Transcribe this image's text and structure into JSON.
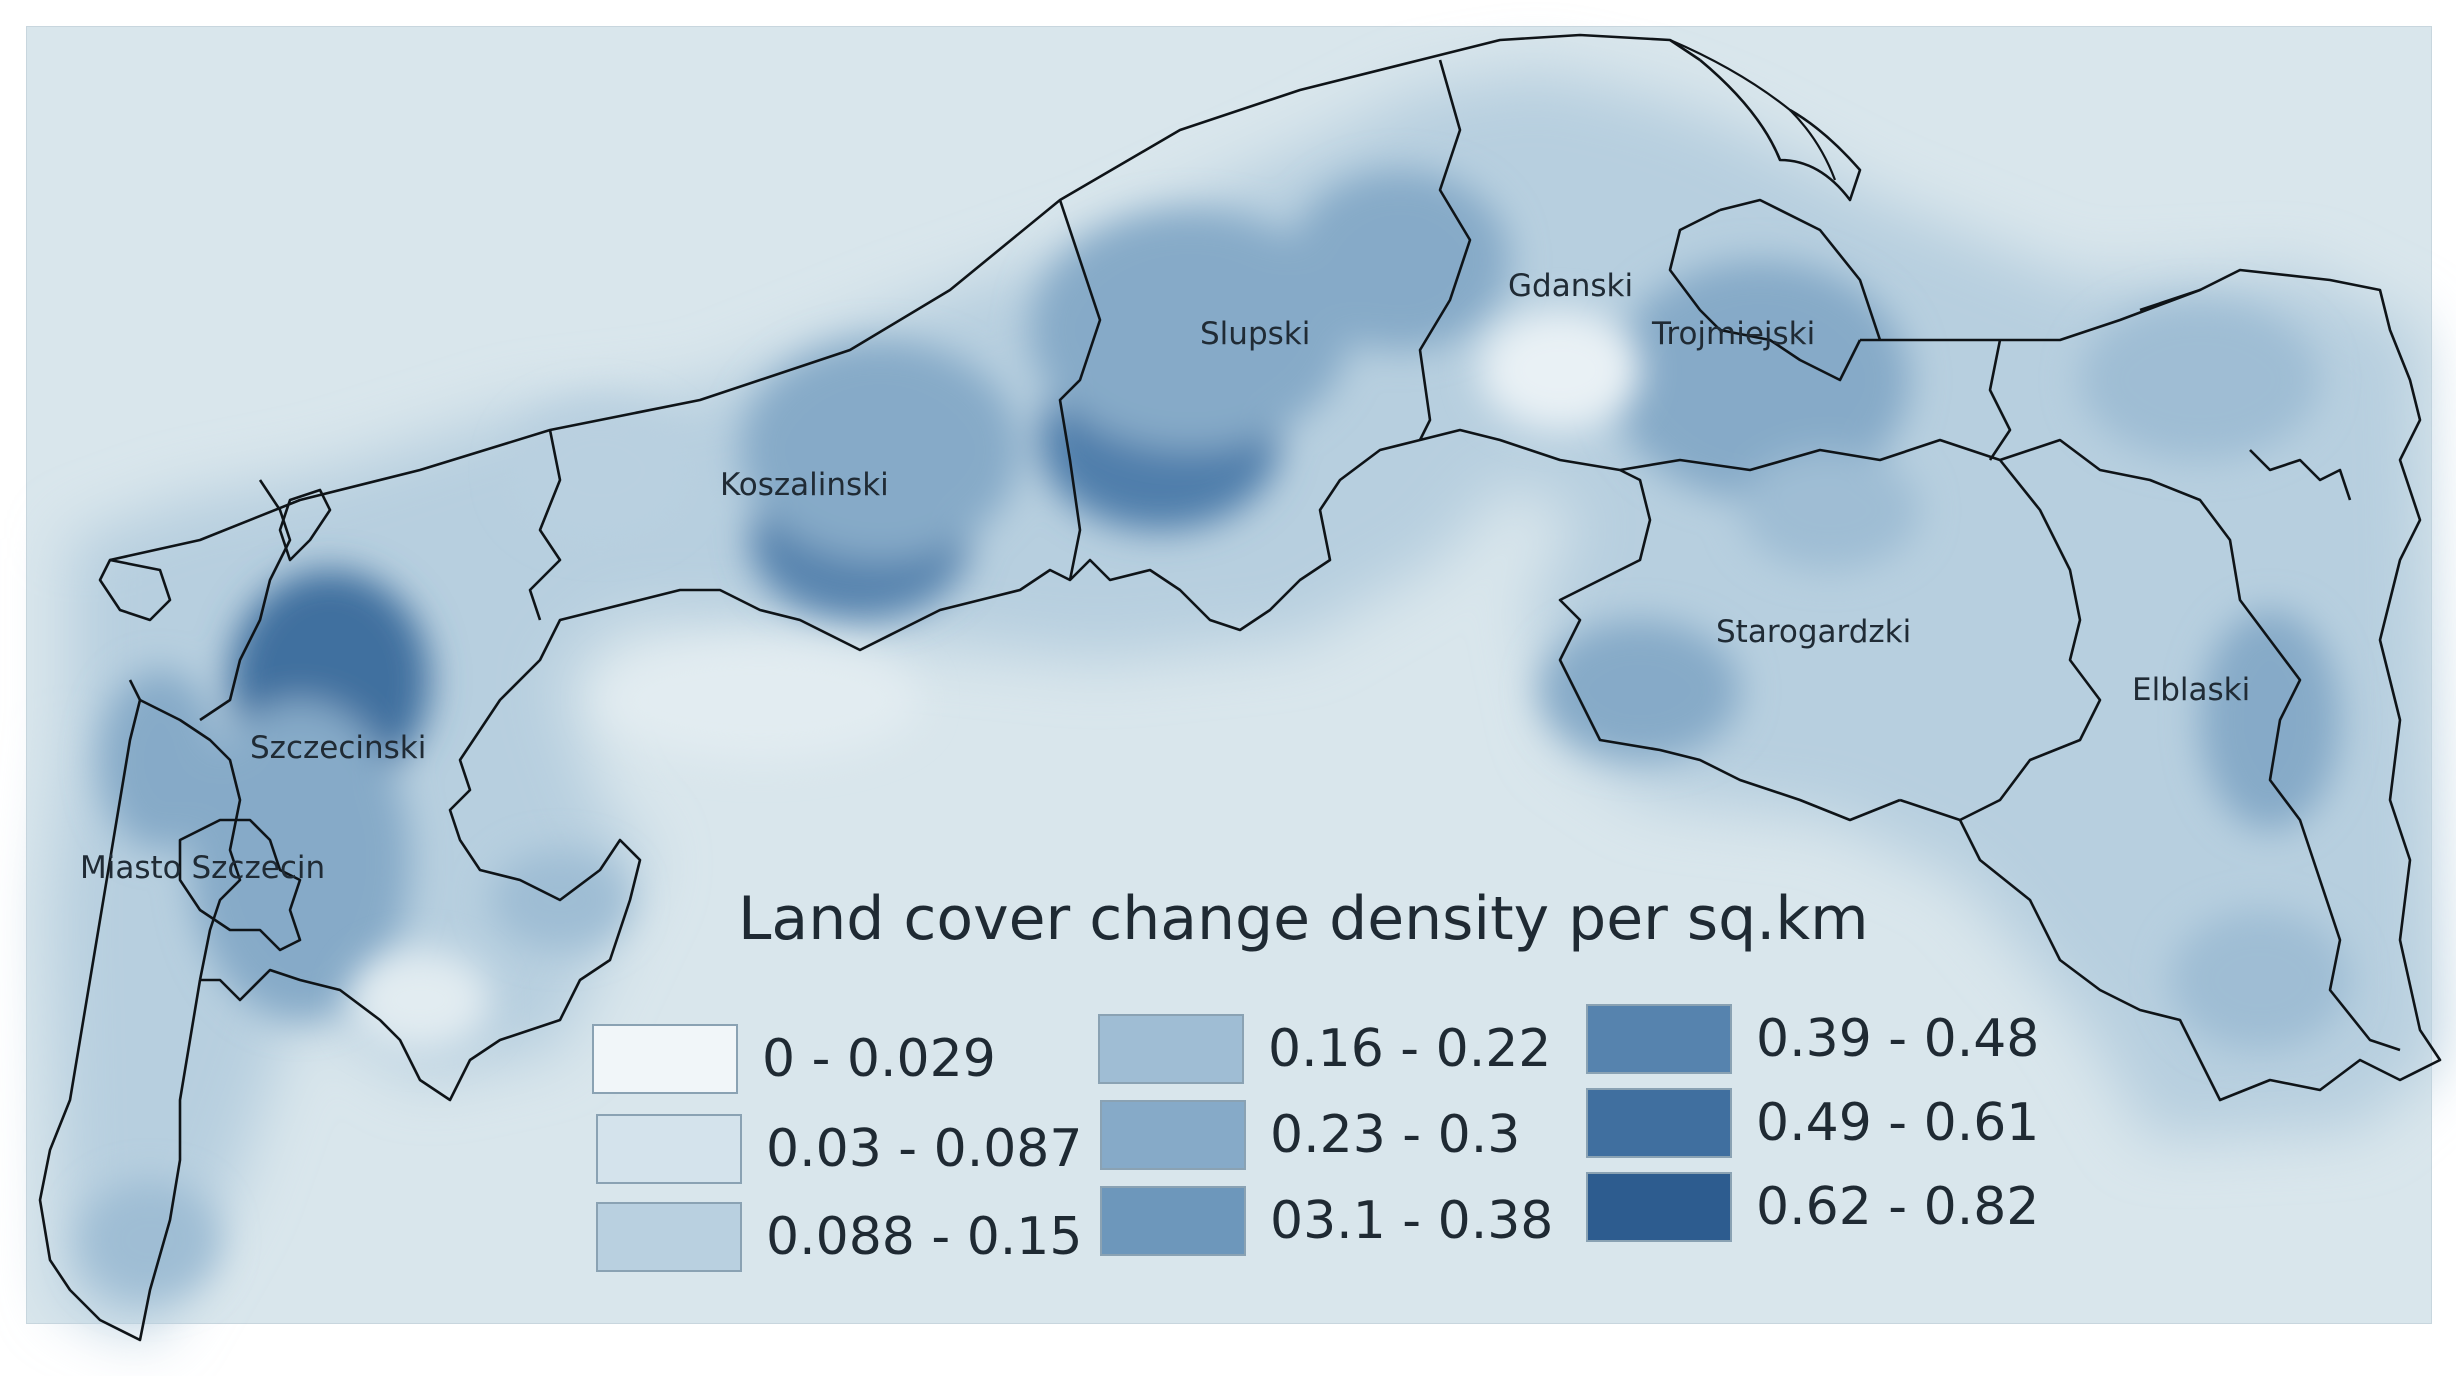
{
  "map": {
    "title": "",
    "regions": [
      {
        "id": "koszalinski",
        "label": "Koszalinski"
      },
      {
        "id": "slupski",
        "label": "Slupski"
      },
      {
        "id": "gdanski",
        "label": "Gdanski"
      },
      {
        "id": "trojmiejski",
        "label": "Trojmiejski"
      },
      {
        "id": "starogardzki",
        "label": "Starogardzki"
      },
      {
        "id": "elblaski",
        "label": "Elblaski"
      },
      {
        "id": "szczecinski",
        "label": "Szczecinski"
      },
      {
        "id": "miasto-szczecin",
        "label": "Miasto Szczecin"
      }
    ]
  },
  "legend": {
    "title": "Land cover change density per sq.km",
    "classes": [
      {
        "label": "0 - 0.029",
        "color": "#f1f6f9"
      },
      {
        "label": "0.03 - 0.087",
        "color": "#d4e3ec"
      },
      {
        "label": "0.088 - 0.15",
        "color": "#b9d0e0"
      },
      {
        "label": "0.16 - 0.22",
        "color": "#9fbdd4"
      },
      {
        "label": "0.23 - 0.3",
        "color": "#86aac8"
      },
      {
        "label": "03.1 - 0.38",
        "color": "#6d97bb"
      },
      {
        "label": "0.39 - 0.48",
        "color": "#5683ae"
      },
      {
        "label": "0.49 - 0.61",
        "color": "#406f9f"
      },
      {
        "label": "0.62 - 0.82",
        "color": "#2d5c8f"
      }
    ]
  }
}
